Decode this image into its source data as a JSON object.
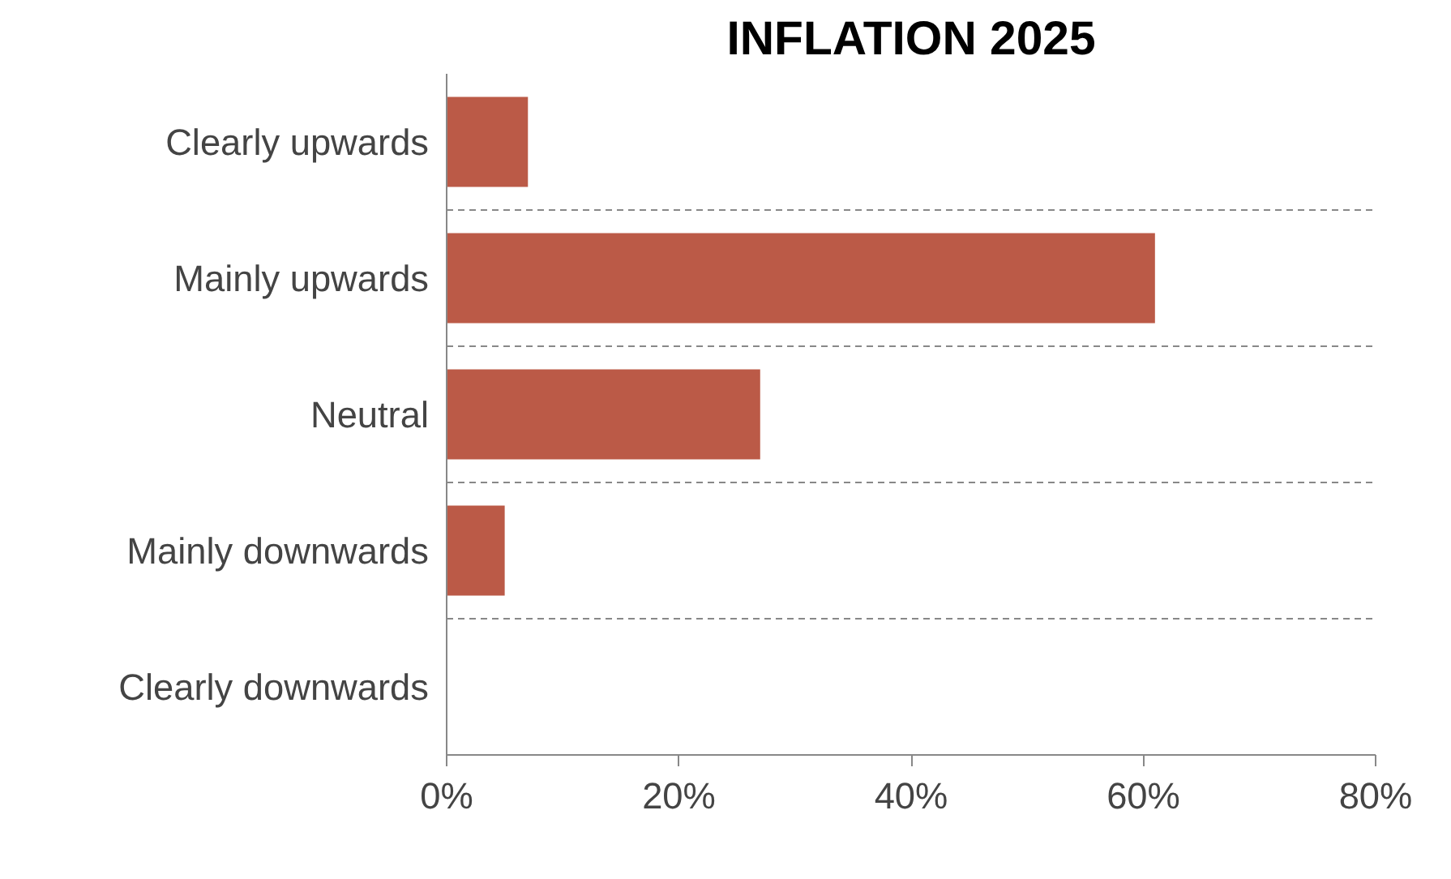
{
  "chart_data": {
    "type": "bar",
    "orientation": "horizontal",
    "title": "INFLATION 2025",
    "categories": [
      "Clearly upwards",
      "Mainly upwards",
      "Neutral",
      "Mainly downwards",
      "Clearly downwards"
    ],
    "values": [
      7,
      61,
      27,
      5,
      0
    ],
    "color": "#bb5a47",
    "xlim": [
      0,
      80
    ],
    "xticks": [
      {
        "value": 0,
        "label": "0%"
      },
      {
        "value": 20,
        "label": "20%"
      },
      {
        "value": 40,
        "label": "40%"
      },
      {
        "value": 60,
        "label": "60%"
      },
      {
        "value": 80,
        "label": "80%"
      }
    ],
    "grid": "y"
  }
}
